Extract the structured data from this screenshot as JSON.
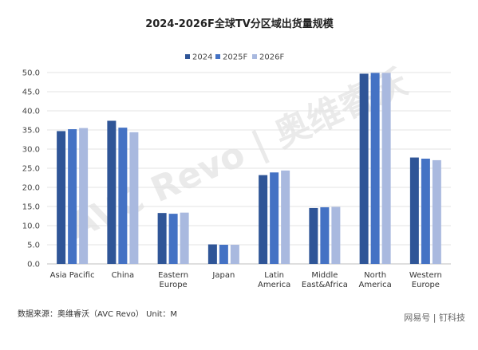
{
  "chart_data": {
    "type": "bar",
    "title": "2024-2026F全球TV分区域出货量规模",
    "categories": [
      [
        "Asia Pacific"
      ],
      [
        "China"
      ],
      [
        "Eastern",
        "Europe"
      ],
      [
        "Japan"
      ],
      [
        "Latin",
        "America"
      ],
      [
        "Middle",
        "East&Africa"
      ],
      [
        "North",
        "America"
      ],
      [
        "Western",
        "Europe"
      ]
    ],
    "series": [
      {
        "name": "2024",
        "color": "#2f5597",
        "values": [
          34.7,
          37.4,
          13.3,
          5.1,
          23.2,
          14.6,
          49.7,
          27.8
        ]
      },
      {
        "name": "2025F",
        "color": "#4472c4",
        "values": [
          35.2,
          35.6,
          13.1,
          5.0,
          23.9,
          14.8,
          49.9,
          27.5
        ]
      },
      {
        "name": "2026F",
        "color": "#a9b9df",
        "values": [
          35.5,
          34.4,
          13.4,
          5.0,
          24.4,
          14.9,
          49.9,
          27.1
        ]
      }
    ],
    "ylim": [
      0,
      50
    ],
    "yticks": [
      "0.0",
      "5.0",
      "10.0",
      "15.0",
      "20.0",
      "25.0",
      "30.0",
      "35.0",
      "40.0",
      "45.0",
      "50.0"
    ],
    "grid": true,
    "legend": "top-center"
  },
  "source": "数据来源：奥维睿沃（AVC Revo） Unit：M",
  "watermark": "AVC Revo | 奥维睿沃",
  "corner_label": "网易号 | 钉科技"
}
